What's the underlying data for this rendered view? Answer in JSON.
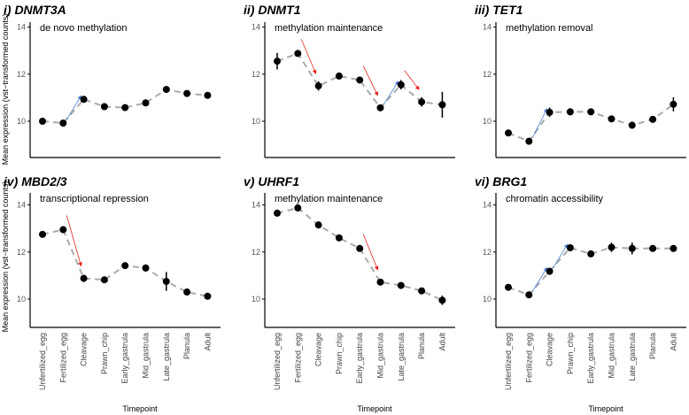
{
  "chart_data": [
    {
      "type": "line",
      "title": "i) DNMT3A",
      "subtitle": "de novo methylation",
      "values": [
        10.0,
        9.92,
        10.93,
        10.62,
        10.58,
        10.78,
        11.35,
        11.18,
        11.1
      ],
      "errors": [
        0.05,
        0.05,
        0.08,
        0.05,
        0.05,
        0.06,
        0.08,
        0.06,
        0.1
      ],
      "arrows": [
        {
          "from": 1,
          "to": 2,
          "color": "#4a7fd4"
        }
      ]
    },
    {
      "type": "line",
      "title": "ii) DNMT1",
      "subtitle": "methylation maintenance",
      "values": [
        12.55,
        12.88,
        11.5,
        11.92,
        11.75,
        10.57,
        11.55,
        10.82,
        10.7
      ],
      "errors": [
        0.35,
        0.05,
        0.2,
        0.05,
        0.08,
        0.08,
        0.2,
        0.2,
        0.55
      ],
      "arrows": [
        {
          "from": 1,
          "to": 2,
          "color": "#e8221c"
        },
        {
          "from": 4,
          "to": 5,
          "color": "#e8221c"
        },
        {
          "from": 5,
          "to": 6,
          "color": "#4a7fd4"
        },
        {
          "from": 6,
          "to": 7,
          "color": "#e8221c"
        }
      ]
    },
    {
      "type": "line",
      "title": "iii) TET1",
      "subtitle": "methylation removal",
      "values": [
        9.5,
        9.15,
        10.38,
        10.4,
        10.4,
        10.1,
        9.83,
        10.08,
        10.72
      ],
      "errors": [
        0.05,
        0.05,
        0.2,
        0.15,
        0.05,
        0.05,
        0.15,
        0.08,
        0.3
      ],
      "arrows": [
        {
          "from": 1,
          "to": 2,
          "color": "#4a7fd4"
        }
      ]
    },
    {
      "type": "line",
      "title": "iv) MBD2/3",
      "subtitle": "transcriptional repression",
      "values": [
        12.75,
        12.95,
        10.88,
        10.82,
        11.42,
        11.32,
        10.75,
        10.3,
        10.12
      ],
      "errors": [
        0.12,
        0.05,
        0.15,
        0.05,
        0.12,
        0.15,
        0.4,
        0.05,
        0.05
      ],
      "arrows": [
        {
          "from": 1,
          "to": 2,
          "color": "#e8221c"
        }
      ]
    },
    {
      "type": "line",
      "title": "v) UHRF1",
      "subtitle": "methylation maintenance",
      "values": [
        13.65,
        13.87,
        13.15,
        12.6,
        12.15,
        10.72,
        10.58,
        10.35,
        9.95
      ],
      "errors": [
        0.05,
        0.08,
        0.15,
        0.05,
        0.05,
        0.05,
        0.05,
        0.05,
        0.2
      ],
      "arrows": [
        {
          "from": 4,
          "to": 5,
          "color": "#e8221c"
        }
      ]
    },
    {
      "type": "line",
      "title": "vi) BRG1",
      "subtitle": "chromatin accessibility",
      "values": [
        10.5,
        10.18,
        11.18,
        12.18,
        11.92,
        12.2,
        12.15,
        12.15,
        12.15
      ],
      "errors": [
        0.05,
        0.05,
        0.15,
        0.05,
        0.05,
        0.2,
        0.25,
        0.08,
        0.08
      ],
      "arrows": [
        {
          "from": 1,
          "to": 2,
          "color": "#4a7fd4"
        },
        {
          "from": 2,
          "to": 3,
          "color": "#4a7fd4"
        }
      ]
    }
  ],
  "categories": [
    "Unfertilized_egg",
    "Fertilized_egg",
    "Cleavage",
    "Prawn_chip",
    "Early_gastrula",
    "Mid_gastrula",
    "Late_gastrula",
    "Planula",
    "Adult"
  ],
  "yticks": [
    "10",
    "12",
    "14"
  ],
  "ylim": [
    8.5,
    14.3
  ],
  "ylabel": "Mean expression (vst−transformed counts)",
  "xlabel": "Timepoint"
}
